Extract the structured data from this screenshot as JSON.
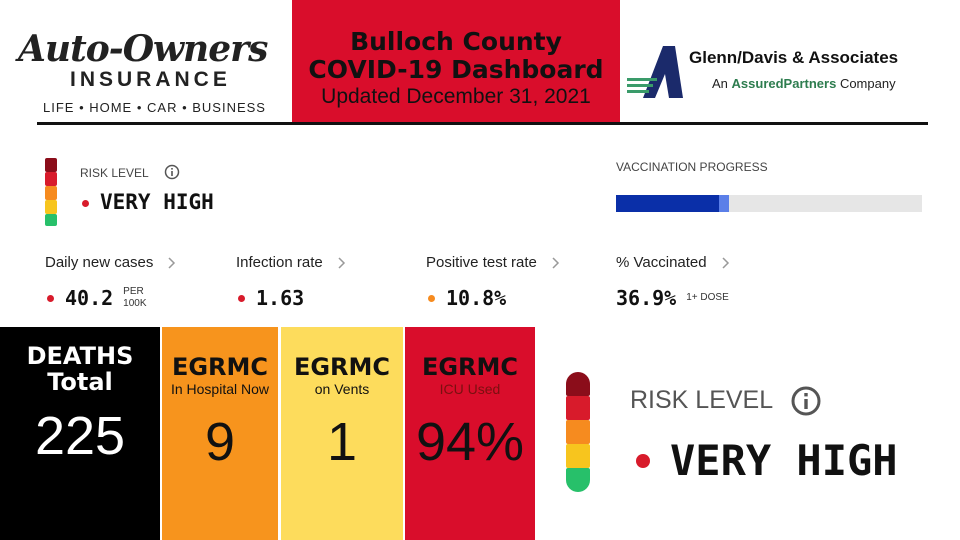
{
  "logo_left": {
    "name": "Auto-Owners",
    "sub": "INSURANCE",
    "tagline": "LIFE • HOME • CAR • BUSINESS"
  },
  "header": {
    "line1": "Bulloch County",
    "line2": "COVID-19 Dashboard",
    "updated": "Updated December 31, 2021"
  },
  "logo_right": {
    "name": "Glenn/Davis & Associates",
    "pre": "An",
    "brand": "AssuredPartners",
    "post": "Company"
  },
  "risk": {
    "label": "RISK LEVEL",
    "level": "VERY HIGH"
  },
  "vaccination": {
    "label": "VACCINATION PROGRESS"
  },
  "metrics": [
    {
      "label": "Daily new cases",
      "value": "40.2",
      "unit1": "PER",
      "unit2": "100K"
    },
    {
      "label": "Infection rate",
      "value": "1.63"
    },
    {
      "label": "Positive test rate",
      "value": "10.8%"
    },
    {
      "label": "% Vaccinated",
      "value": {
        "value": 36.9,
        "label": "36.9%"
      },
      "unit1": "1+ DOSE"
    }
  ],
  "tiles": [
    {
      "title": "DEATHS",
      "sub": "Total",
      "value": "225"
    },
    {
      "title": "EGRMC",
      "sub": "In Hospital Now",
      "value": "9"
    },
    {
      "title": "EGRMC",
      "sub": "on Vents",
      "value": "1"
    },
    {
      "title": "EGRMC",
      "sub": "ICU Used",
      "value": "94%"
    }
  ],
  "big_risk": {
    "label": "RISK LEVEL",
    "level": "VERY HIGH"
  }
}
